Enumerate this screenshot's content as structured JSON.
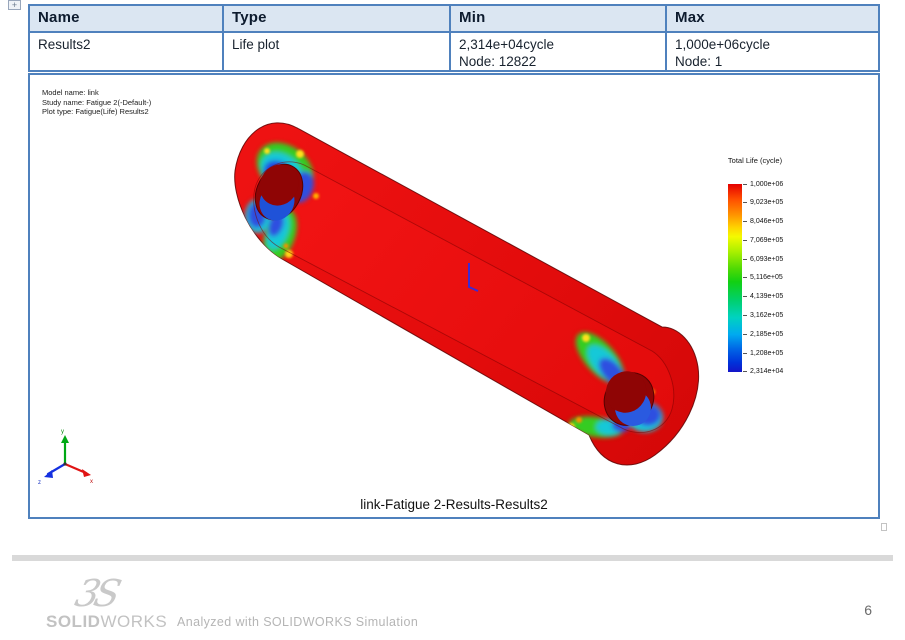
{
  "table": {
    "headers": [
      "Name",
      "Type",
      "Min",
      "Max"
    ],
    "row": {
      "name": "Results2",
      "type": "Life plot",
      "min_value": "2,314e+04cycle",
      "min_node": "Node: 12822",
      "max_value": "1,000e+06cycle",
      "max_node": "Node: 1"
    }
  },
  "plot": {
    "model_info": [
      "Model name: link",
      "Study name: Fatigue 2(-Default-)",
      "Plot type: Fatigue(Life) Results2"
    ],
    "legend": {
      "title": "Total Life (cycle)",
      "labels": [
        "1,000e+06",
        "9,023e+05",
        "8,046e+05",
        "7,069e+05",
        "6,093e+05",
        "5,116e+05",
        "4,139e+05",
        "3,162e+05",
        "2,185e+05",
        "1,208e+05",
        "2,314e+04"
      ]
    },
    "caption": "link-Fatigue 2-Results-Results2",
    "triad": {
      "x": "x",
      "y": "y",
      "z": "z"
    }
  },
  "handle_glyph": "+",
  "footer": {
    "logo_mark": "3S",
    "logo_part1": "SOLID",
    "logo_part2": "WORKS",
    "tagline": "Analyzed with SOLIDWORKS Simulation",
    "page_number": "6"
  },
  "colors": {
    "border_blue": "#4f81bd",
    "header_fill": "#dbe6f2",
    "body_red": "#e60d0d",
    "legend_top": "#e40000",
    "legend_bottom": "#1414c8"
  }
}
